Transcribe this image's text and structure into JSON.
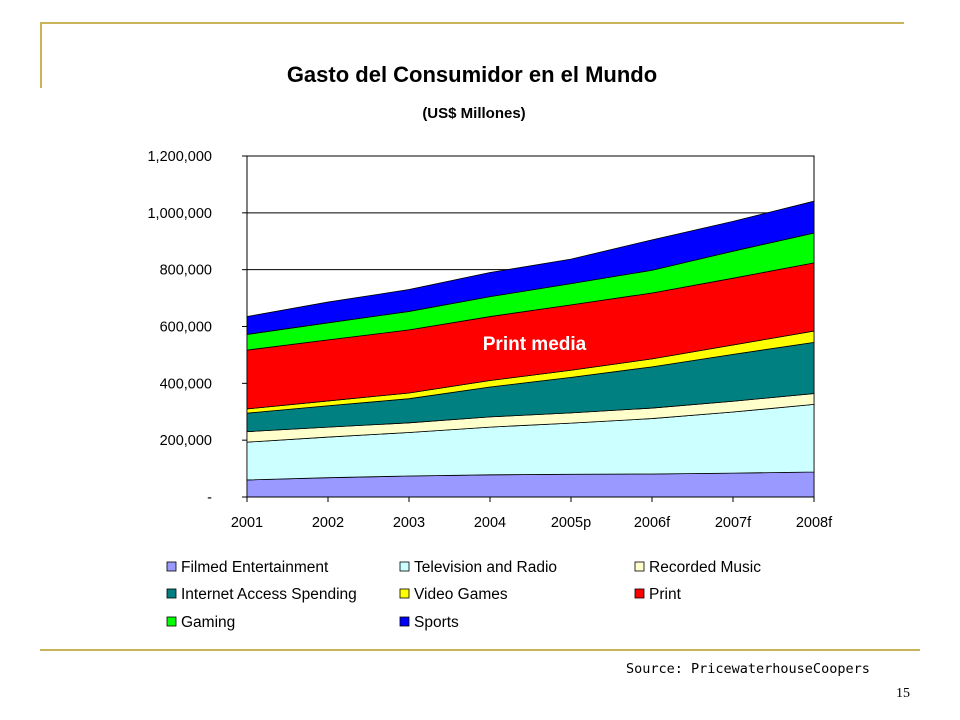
{
  "slide": {
    "source": "Source: PricewaterhouseCoopers",
    "page_number": "15"
  },
  "chart_data": {
    "type": "area",
    "stacked": true,
    "title": "Gasto del Consumidor en el Mundo",
    "subtitle": "(US$ Millones)",
    "xlabel": "",
    "ylabel": "",
    "categories": [
      "2001",
      "2002",
      "2003",
      "2004",
      "2005p",
      "2006f",
      "2007f",
      "2008f"
    ],
    "y_ticks": [
      0,
      200000,
      400000,
      600000,
      800000,
      1000000,
      1200000
    ],
    "y_tick_labels": [
      "-",
      "200,000",
      "400,000",
      "600,000",
      "800,000",
      "1,000,000",
      "1,200,000"
    ],
    "ylim": [
      0,
      1200000
    ],
    "grid": true,
    "legend_position": "bottom",
    "annotation": {
      "text": "Print media",
      "series": "Print"
    },
    "series": [
      {
        "name": "Filmed Entertainment",
        "color": "#9999ff",
        "values": [
          60000,
          68000,
          74000,
          78000,
          80000,
          81000,
          84000,
          88000
        ]
      },
      {
        "name": "Television and Radio",
        "color": "#ccffff",
        "values": [
          133000,
          143000,
          153000,
          168000,
          180000,
          195000,
          215000,
          238000
        ]
      },
      {
        "name": "Recorded Music",
        "color": "#ffffcc",
        "values": [
          37000,
          35000,
          34000,
          36000,
          36000,
          37000,
          38000,
          38000
        ]
      },
      {
        "name": "Internet Access Spending",
        "color": "#008080",
        "values": [
          65000,
          75000,
          85000,
          105000,
          125000,
          145000,
          165000,
          180000
        ]
      },
      {
        "name": "Video Games",
        "color": "#ffff00",
        "values": [
          15000,
          17000,
          20000,
          23000,
          25000,
          28000,
          33000,
          40000
        ]
      },
      {
        "name": "Print",
        "color": "#ff0000",
        "values": [
          207000,
          215000,
          222000,
          225000,
          230000,
          232000,
          235000,
          240000
        ]
      },
      {
        "name": "Gaming",
        "color": "#00ff00",
        "values": [
          55000,
          60000,
          65000,
          70000,
          75000,
          80000,
          95000,
          105000
        ]
      },
      {
        "name": "Sports",
        "color": "#0000ff",
        "values": [
          63000,
          73000,
          77000,
          85000,
          86000,
          107000,
          105000,
          112000
        ]
      }
    ]
  }
}
